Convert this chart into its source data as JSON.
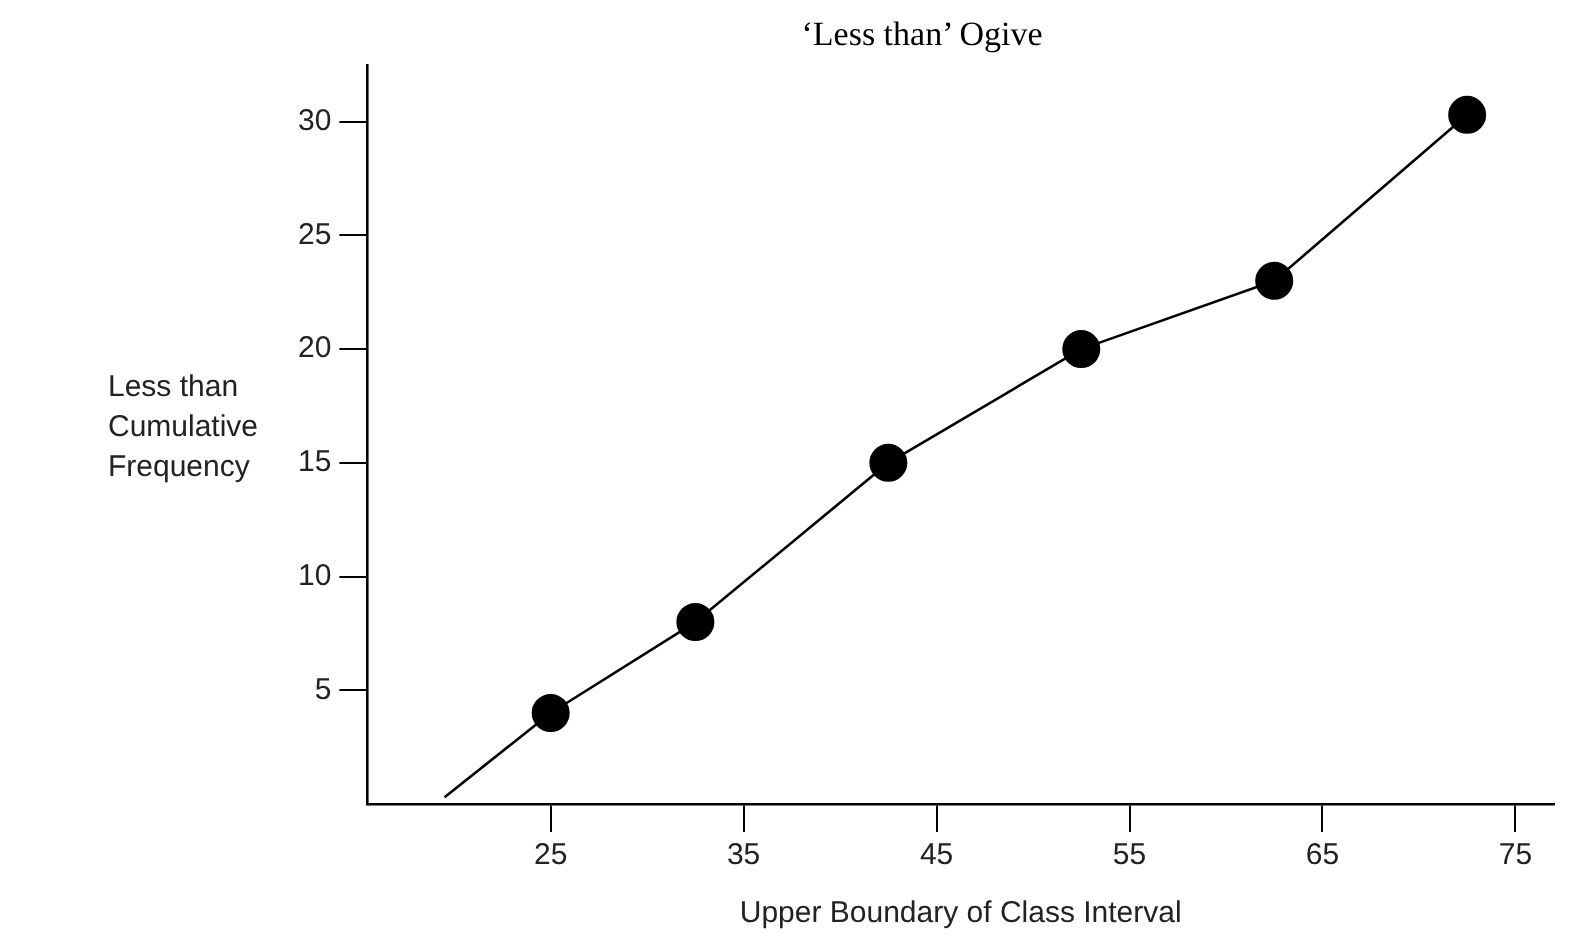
{
  "chart_data": {
    "type": "line",
    "title": "‘Less than’ Ogive",
    "xlabel": "Upper Boundary of Class Interval",
    "ylabel": "Less than Cumulative Frequency",
    "xlim": [
      15.5,
      77
    ],
    "xticks": [
      25,
      35,
      45,
      55,
      65,
      75
    ],
    "ylim": [
      0,
      32.5
    ],
    "yticks": [
      5,
      10,
      15,
      20,
      25,
      30
    ],
    "grid": false,
    "legend": false,
    "series": [
      {
        "type": "line",
        "marker": "none",
        "color": "#000000",
        "x": [
          19.5,
          25,
          32.5,
          42.5,
          52.5,
          62.5,
          72.5
        ],
        "values": [
          0.3,
          4,
          8,
          15,
          20,
          23,
          30.3
        ]
      },
      {
        "type": "scatter",
        "marker": "circle",
        "color": "#000000",
        "x": [
          25,
          32.5,
          42.5,
          52.5,
          62.5,
          72.5
        ],
        "values": [
          4,
          8,
          15,
          20,
          23,
          30.3
        ]
      }
    ]
  }
}
